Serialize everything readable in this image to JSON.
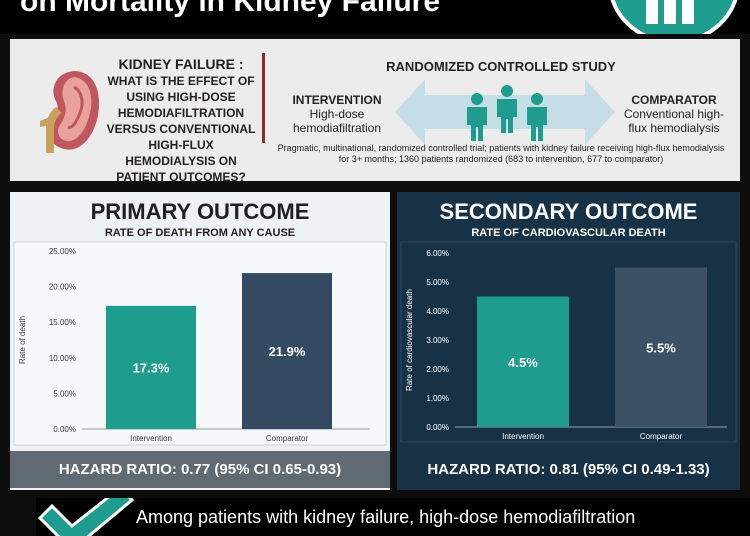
{
  "header": {
    "title": "on Mortality in Kidney Failure"
  },
  "question": {
    "title": "KIDNEY FAILURE :",
    "body": "WHAT IS THE EFFECT OF USING HIGH-DOSE HEMODIAFILTRATION VERSUS CONVENTIONAL HIGH-FLUX HEMODIALYSIS ON PATIENT OUTCOMES?"
  },
  "study": {
    "title": "RANDOMIZED CONTROLLED STUDY",
    "intervention_label": "INTERVENTION",
    "intervention_desc": "High-dose hemodiafiltration",
    "comparator_label": "COMPARATOR",
    "comparator_desc": "Conventional high-flux hemodialysis",
    "note": "Pragmatic, multinational, randomized controlled trial; patients with kidney failure receiving high-flux hemodialysis for 3+ months; 1360 patients randomized (683 to intervention, 677 to comparator)"
  },
  "primary": {
    "title": "PRIMARY OUTCOME",
    "subtitle": "RATE OF DEATH FROM ANY CAUSE",
    "hazard_ratio": "HAZARD RATIO: 0.77 (95% CI 0.65-0.93)"
  },
  "secondary": {
    "title": "SECONDARY OUTCOME",
    "subtitle": "RATE OF CARDIOVASCULAR DEATH",
    "hazard_ratio": "HAZARD RATIO: 0.81 (95% CI 0.49-1.33)"
  },
  "conclusion": {
    "text": "Among patients with kidney failure, high-dose hemodiafiltration"
  },
  "colors": {
    "teal": "#1e9c8e",
    "navy": "#344a63",
    "slate": "#3d5166",
    "hr_bar": "#5f6a73",
    "dark_panel": "#173146",
    "divider": "#8b2b2b"
  },
  "icons": [
    "kidney-icon",
    "people-icon",
    "double-arrow-icon",
    "checkmark-icon",
    "logo-icon"
  ],
  "chart_data": [
    {
      "type": "bar",
      "categories": [
        "Intervention",
        "Comparator"
      ],
      "values": [
        17.3,
        21.9
      ],
      "value_labels": [
        "17.3%",
        "21.9%"
      ],
      "ylabel": "Rate of death",
      "ylim": [
        0,
        25
      ],
      "yticks": [
        0,
        5,
        10,
        15,
        20,
        25
      ],
      "ytick_labels": [
        "0.00%",
        "5.00%",
        "10.00%",
        "15.00%",
        "20.00%",
        "25.00%"
      ],
      "bar_colors": [
        "#1e9c8e",
        "#344a63"
      ],
      "grid": false,
      "legend": "none"
    },
    {
      "type": "bar",
      "categories": [
        "Intervention",
        "Comparator"
      ],
      "values": [
        4.5,
        5.5
      ],
      "value_labels": [
        "4.5%",
        "5.5%"
      ],
      "ylabel": "Rate of cardiovascular death",
      "ylim": [
        0,
        6
      ],
      "yticks": [
        0,
        1,
        2,
        3,
        4,
        5,
        6
      ],
      "ytick_labels": [
        "0.00%",
        "1.00%",
        "2.00%",
        "3.00%",
        "4.00%",
        "5.00%",
        "6.00%"
      ],
      "bar_colors": [
        "#1e9c8e",
        "#3d5166"
      ],
      "grid": false,
      "legend": "none"
    }
  ]
}
